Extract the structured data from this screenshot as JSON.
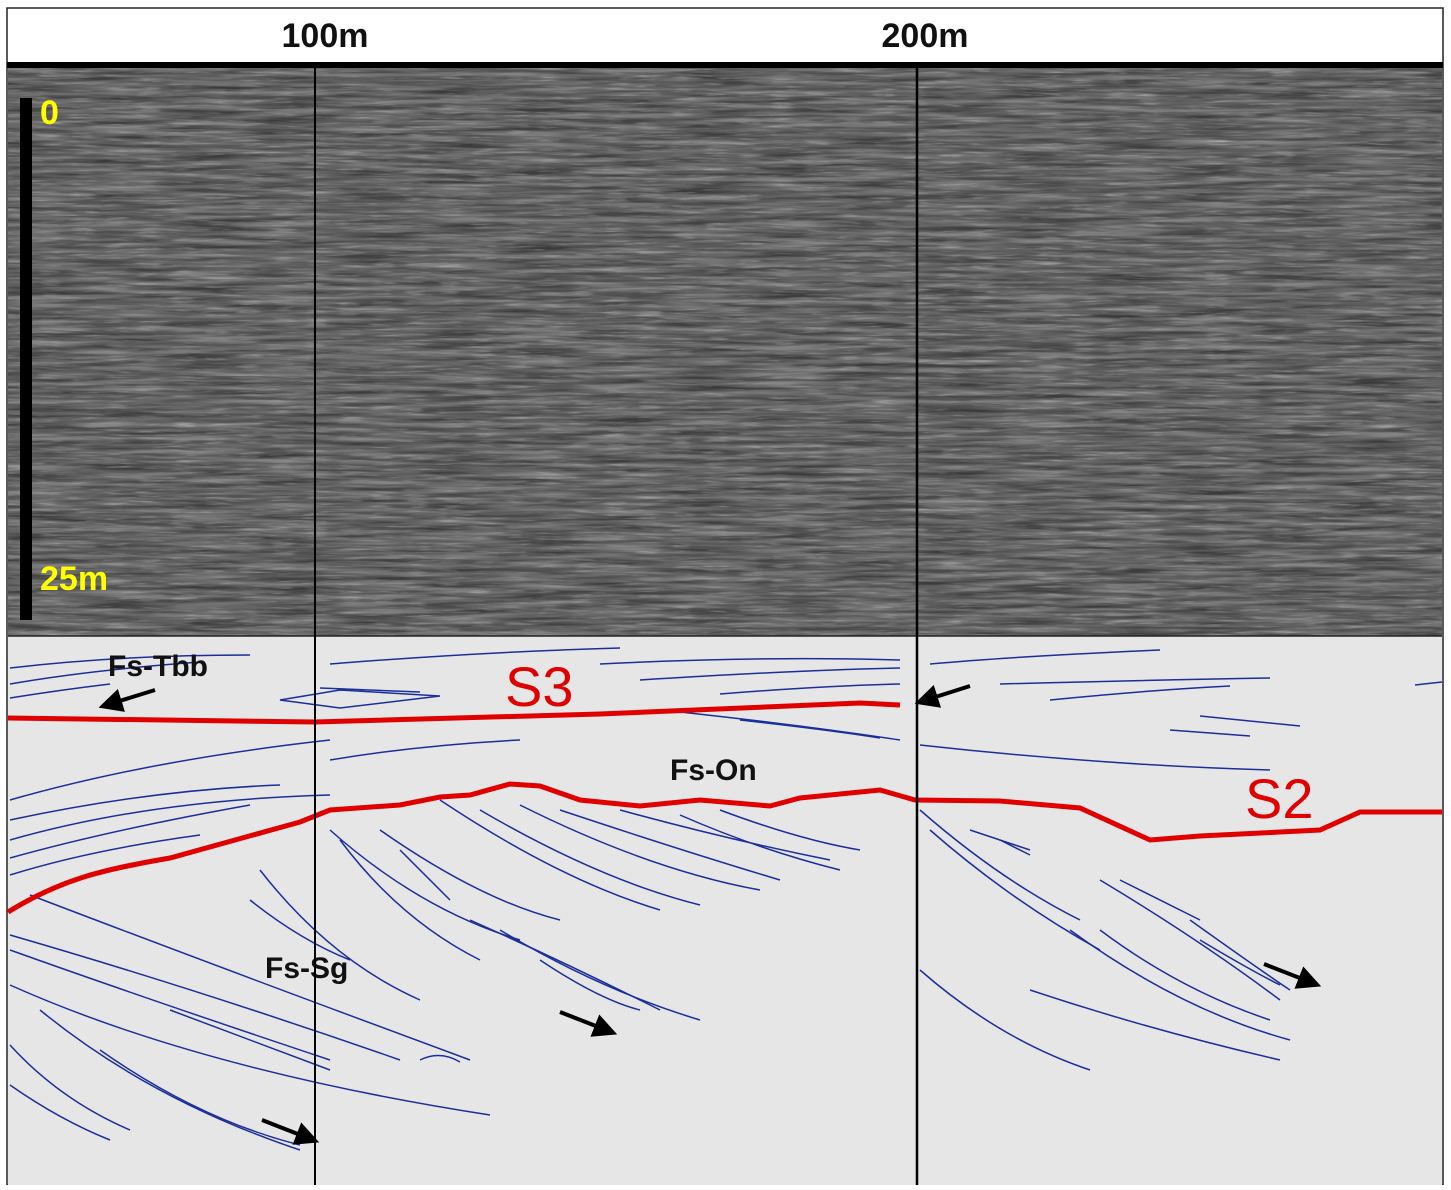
{
  "distance_axis": {
    "labels": [
      "100m",
      "200m"
    ]
  },
  "depth_scale": {
    "top": "0",
    "bottom": "25m"
  },
  "annotations": {
    "facies": [
      "Fs-Tbb",
      "Fs-On",
      "Fs-Sg"
    ],
    "surfaces": [
      "S3",
      "S2"
    ]
  }
}
